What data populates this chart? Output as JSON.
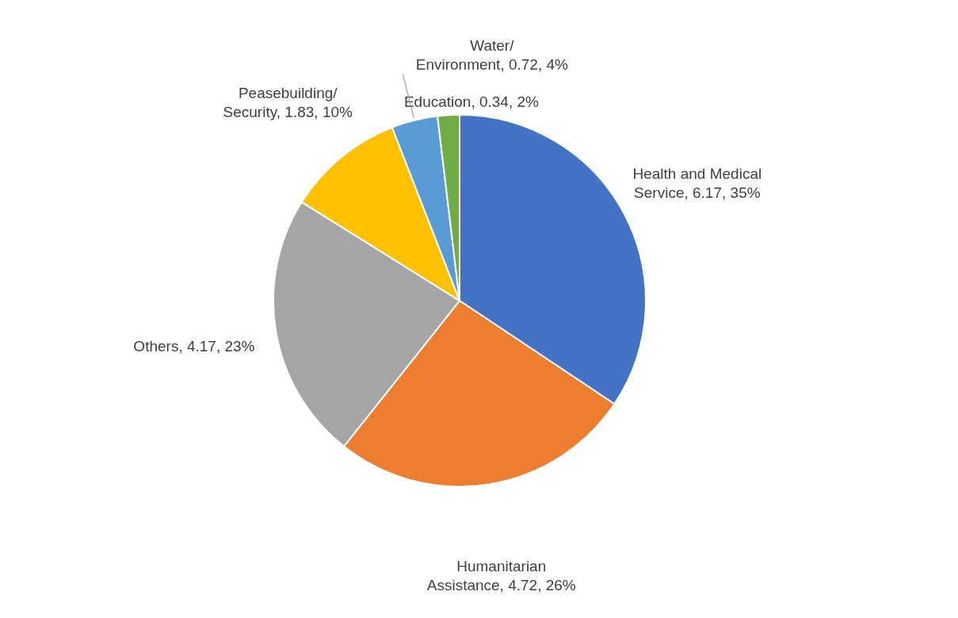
{
  "chart_data": {
    "type": "pie",
    "categories": [
      "Health and Medical Service",
      "Humanitarian Assistance",
      "Others",
      "Peasebuilding/ Security",
      "Water/ Environment",
      "Education"
    ],
    "values": [
      6.17,
      4.72,
      4.17,
      1.83,
      0.72,
      0.34
    ],
    "value_labels": [
      "6.17, 35%",
      "4.72, 26%",
      "4.17, 23%",
      "1.83, 10%",
      "0.72, 4%",
      "0.34, 2%"
    ],
    "colors": [
      "#4472c4",
      "#ed7d31",
      "#a5a5a5",
      "#ffc000",
      "#5b9bd5",
      "#70ad47"
    ],
    "legend": false
  }
}
